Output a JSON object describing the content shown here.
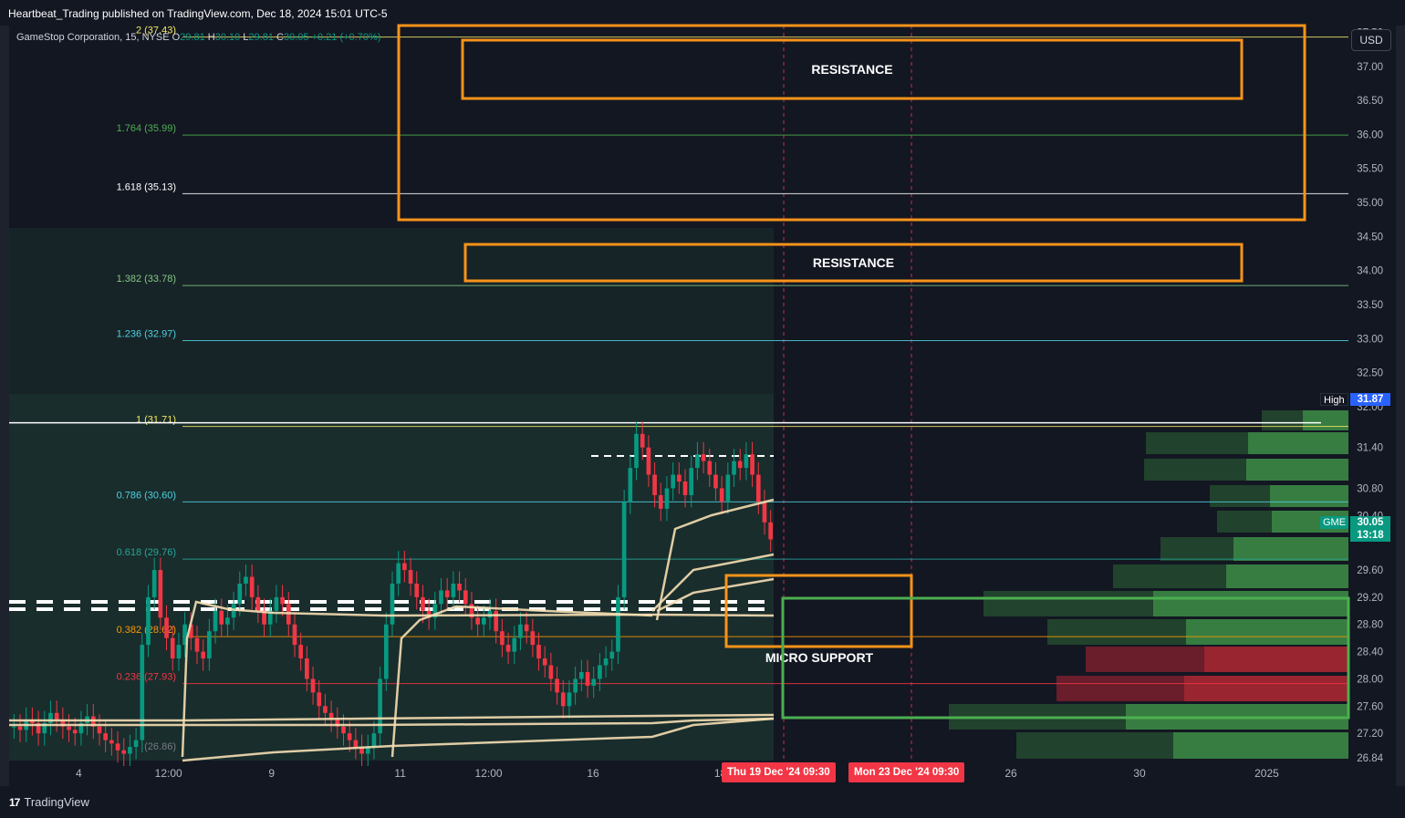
{
  "publish_line": "Heartbeat_Trading published on TradingView.com, Dec 18, 2024 15:01 UTC-5",
  "brand": "TradingView",
  "currency_button": "USD",
  "legend": {
    "symbol": "GameStop Corporation, 15, NYSE",
    "open_label": "O",
    "open": "29.81",
    "high_label": "H",
    "high": "30.10",
    "low_label": "L",
    "low": "29.81",
    "close_label": "C",
    "close": "30.05",
    "change": "+0.21 (+0.70%)"
  },
  "symbol_tag": "GME",
  "last_price": "30.05",
  "countdown": "13:18",
  "high_label": "High",
  "high_price": "31.87",
  "colors": {
    "background": "#131722",
    "up": "#089981",
    "down": "#f23645",
    "orange": "#f7931a",
    "green_box": "#4caf50",
    "vwap": "#f5deb3"
  },
  "chart_data": {
    "type": "candlestick",
    "symbol": "GME",
    "interval": "15",
    "y_axis": {
      "range": [
        26.8,
        37.6
      ],
      "ticks": [
        "37.50",
        "37.00",
        "36.50",
        "36.00",
        "35.50",
        "35.00",
        "34.50",
        "34.00",
        "33.50",
        "33.00",
        "32.50",
        "32.00",
        "31.40",
        "30.80",
        "30.40",
        "29.60",
        "29.20",
        "28.80",
        "28.40",
        "28.00",
        "27.60",
        "27.20",
        "26.84"
      ]
    },
    "x_axis": {
      "ticks": [
        {
          "label": "4",
          "pos": 0.052
        },
        {
          "label": "12:00",
          "pos": 0.119
        },
        {
          "label": "9",
          "pos": 0.196
        },
        {
          "label": "11",
          "pos": 0.292
        },
        {
          "label": "12:00",
          "pos": 0.358
        },
        {
          "label": "16",
          "pos": 0.436
        },
        {
          "label": "18",
          "pos": 0.531
        },
        {
          "label": "26",
          "pos": 0.748
        },
        {
          "label": "30",
          "pos": 0.844
        },
        {
          "label": "2025",
          "pos": 0.939
        }
      ],
      "marker_dates": [
        "Thu 19 Dec '24   09:30",
        "Mon 23 Dec '24   09:30"
      ]
    },
    "fib_levels": [
      {
        "label": "2 (37.43)",
        "value": 37.43,
        "color": "#f5e663"
      },
      {
        "label": "1.764 (35.99)",
        "value": 35.99,
        "color": "#4caf50"
      },
      {
        "label": "1.618 (35.13)",
        "value": 35.13,
        "color": "#ffffff"
      },
      {
        "label": "1.382 (33.78)",
        "value": 33.78,
        "color": "#81c784"
      },
      {
        "label": "1.236 (32.97)",
        "value": 32.97,
        "color": "#4dd0e1"
      },
      {
        "label": "1 (31.71)",
        "value": 31.71,
        "color": "#f5e663"
      },
      {
        "label": "0.786 (30.60)",
        "value": 30.6,
        "color": "#4dd0e1"
      },
      {
        "label": "0.618 (29.76)",
        "value": 29.76,
        "color": "#26a69a"
      },
      {
        "label": "0.382 (28.62)",
        "value": 28.62,
        "color": "#ff9800"
      },
      {
        "label": "0.236 (27.93)",
        "value": 27.93,
        "color": "#f23645"
      }
    ],
    "fib_zero_label": "(26.86)",
    "zones": [
      {
        "label": "RESISTANCE",
        "top": 37.53,
        "bottom": 36.82
      },
      {
        "label": "RESISTANCE",
        "top": 34.27,
        "bottom": 33.78
      },
      {
        "label": "MICRO SUPPORT",
        "top": 29.27,
        "bottom": 28.37
      }
    ],
    "candles_close": [
      27.3,
      27.25,
      27.4,
      27.35,
      27.2,
      27.35,
      27.5,
      27.4,
      27.3,
      27.25,
      27.2,
      27.35,
      27.45,
      27.3,
      27.2,
      27.1,
      27.05,
      26.95,
      26.9,
      27.0,
      27.1,
      28.5,
      29.2,
      29.6,
      28.9,
      28.6,
      28.3,
      28.5,
      28.8,
      28.6,
      28.4,
      28.3,
      28.7,
      29.0,
      28.8,
      28.9,
      29.1,
      29.4,
      29.5,
      29.2,
      29.0,
      28.8,
      29.0,
      29.2,
      29.1,
      28.8,
      28.5,
      28.3,
      28.0,
      27.8,
      27.6,
      27.5,
      27.4,
      27.3,
      27.2,
      27.1,
      27.0,
      26.9,
      27.0,
      27.2,
      28.0,
      28.8,
      29.4,
      29.7,
      29.6,
      29.4,
      29.2,
      29.0,
      28.9,
      29.1,
      29.3,
      29.2,
      29.4,
      29.3,
      29.1,
      28.9,
      28.8,
      28.9,
      29.0,
      28.7,
      28.5,
      28.4,
      28.6,
      28.8,
      28.7,
      28.5,
      28.3,
      28.2,
      28.0,
      27.8,
      27.6,
      27.8,
      28.0,
      28.1,
      27.9,
      28.0,
      28.2,
      28.3,
      28.4,
      29.2,
      30.6,
      31.1,
      31.6,
      31.4,
      31.0,
      30.7,
      30.5,
      30.8,
      31.0,
      30.9,
      30.7,
      31.1,
      31.3,
      31.2,
      31.0,
      30.8,
      30.6,
      31.0,
      31.2,
      31.1,
      31.3,
      31.0,
      30.6,
      30.3,
      30.05
    ]
  }
}
